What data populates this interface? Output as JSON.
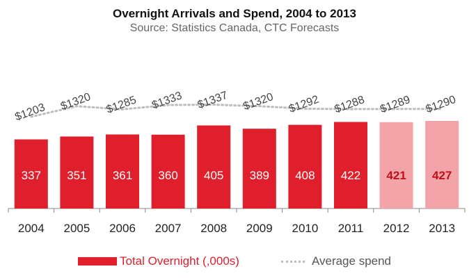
{
  "chart_data": {
    "type": "bar",
    "title": "Overnight Arrivals and Spend, 2004 to 2013",
    "subtitle": "Source: Statistics Canada, CTC Forecasts",
    "categories": [
      "2004",
      "2005",
      "2006",
      "2007",
      "2008",
      "2009",
      "2010",
      "2011",
      "2012",
      "2013"
    ],
    "series": [
      {
        "name": "Total Overnight (,000s)",
        "type": "bar",
        "values": [
          337,
          351,
          361,
          360,
          405,
          389,
          408,
          422,
          421,
          427
        ],
        "value_labels": [
          "337",
          "351",
          "361",
          "360",
          "405",
          "389",
          "408",
          "422",
          "421",
          "427"
        ],
        "forecast_from_index": 8
      },
      {
        "name": "Average spend",
        "type": "line",
        "style": "dotted",
        "values": [
          1203,
          1320,
          1285,
          1333,
          1337,
          1320,
          1292,
          1288,
          1289,
          1290
        ],
        "value_labels": [
          "$1203",
          "$1320",
          "$1285",
          "$1333",
          "$1337",
          "$1320",
          "$1292",
          "$1288",
          "$1289",
          "$1290"
        ]
      }
    ],
    "colors": {
      "bar": "#e01f2d",
      "bar_forecast": "#f3a4a8",
      "label_actual": "#ffffff",
      "label_forecast": "#c0101c",
      "line": "#bdbdbd"
    },
    "legend_position": "bottom",
    "grid": false
  }
}
